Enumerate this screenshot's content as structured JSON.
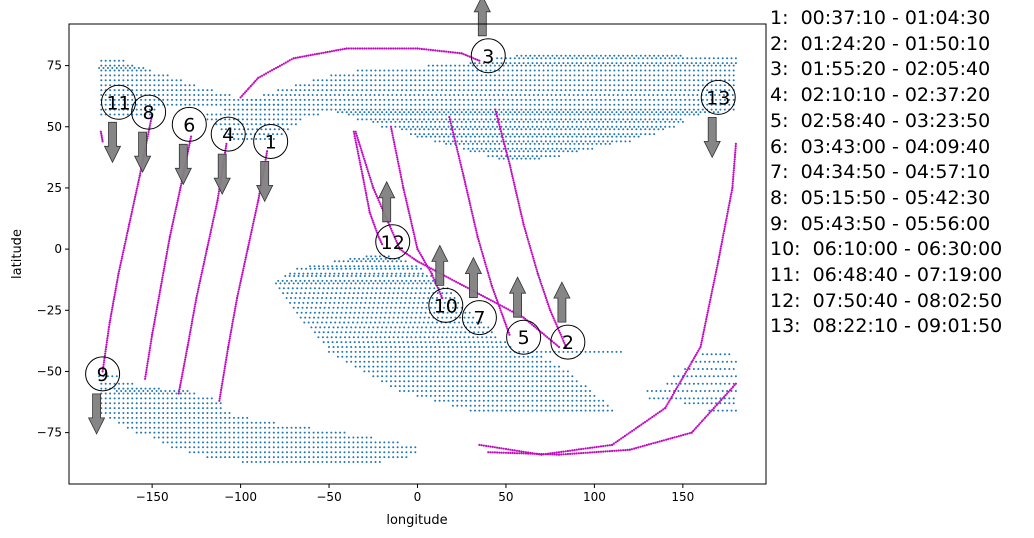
{
  "chart_data": {
    "type": "scatter",
    "title": "",
    "xlabel": "longitude",
    "ylabel": "latitude",
    "xlim": [
      -197,
      197
    ],
    "ylim": [
      -96,
      92
    ],
    "xticks": [
      -150,
      -100,
      -50,
      0,
      50,
      100,
      150
    ],
    "yticks": [
      -75,
      -50,
      -25,
      0,
      25,
      50,
      75
    ],
    "grid": false,
    "series": [
      {
        "color": "#1f77b4",
        "kind": "gridded-points",
        "lat_spacing": 1.5,
        "lon_spacing": 2.5,
        "bands": [
          [
            77,
            -180,
            -165
          ],
          [
            75,
            -180,
            -160
          ],
          [
            74,
            -180,
            -155
          ],
          [
            73,
            -180,
            -150
          ],
          [
            71,
            -180,
            -140
          ],
          [
            69,
            -180,
            -132
          ],
          [
            67,
            -180,
            -125
          ],
          [
            65,
            -180,
            -115
          ],
          [
            63,
            -180,
            -105
          ],
          [
            61,
            -180,
            -90
          ],
          [
            59,
            -180,
            -75
          ],
          [
            57,
            -180,
            -148
          ],
          [
            57,
            -110,
            -50
          ],
          [
            55,
            -180,
            -150
          ],
          [
            55,
            -120,
            -55
          ],
          [
            53,
            -120,
            -65
          ],
          [
            51,
            -115,
            -68
          ],
          [
            49,
            -112,
            -72
          ],
          [
            47,
            -108,
            -75
          ],
          [
            45,
            -105,
            -80
          ],
          [
            79,
            55,
            150
          ],
          [
            78,
            45,
            180
          ],
          [
            76,
            30,
            180
          ],
          [
            75,
            5,
            180
          ],
          [
            73,
            -35,
            180
          ],
          [
            71,
            -50,
            180
          ],
          [
            69,
            -60,
            180
          ],
          [
            67,
            -70,
            180
          ],
          [
            65,
            -80,
            180
          ],
          [
            63,
            -88,
            180
          ],
          [
            61,
            -95,
            180
          ],
          [
            59,
            -100,
            180
          ],
          [
            57,
            -50,
            180
          ],
          [
            56,
            -45,
            170
          ],
          [
            55,
            -40,
            160
          ],
          [
            53,
            -35,
            150
          ],
          [
            52,
            -25,
            150
          ],
          [
            50,
            -20,
            145
          ],
          [
            49,
            -10,
            140
          ],
          [
            47,
            -5,
            135
          ],
          [
            46,
            0,
            125
          ],
          [
            44,
            10,
            120
          ],
          [
            43,
            15,
            110
          ],
          [
            41,
            25,
            100
          ],
          [
            40,
            30,
            90
          ],
          [
            38,
            40,
            80
          ],
          [
            37,
            45,
            70
          ],
          [
            -3,
            -30,
            -15
          ],
          [
            -4,
            -38,
            -10
          ],
          [
            -5,
            -48,
            -5
          ],
          [
            -7,
            -62,
            0
          ],
          [
            -8,
            -68,
            2
          ],
          [
            -10,
            -72,
            5
          ],
          [
            -11,
            -76,
            8
          ],
          [
            -13,
            -80,
            12
          ],
          [
            -14,
            -80,
            14
          ],
          [
            -16,
            -78,
            17
          ],
          [
            -18,
            -76,
            19
          ],
          [
            -20,
            -74,
            22
          ],
          [
            -22,
            -72,
            24
          ],
          [
            -24,
            -70,
            27
          ],
          [
            -26,
            -68,
            30
          ],
          [
            -28,
            -66,
            33
          ],
          [
            -30,
            -64,
            36
          ],
          [
            -32,
            -60,
            40
          ],
          [
            -34,
            -58,
            43
          ],
          [
            -36,
            -56,
            46
          ],
          [
            -38,
            -53,
            50
          ],
          [
            -40,
            -50,
            53
          ],
          [
            -42,
            -50,
            115
          ],
          [
            -44,
            -45,
            70
          ],
          [
            -46,
            -40,
            75
          ],
          [
            -48,
            -35,
            80
          ],
          [
            -50,
            -30,
            85
          ],
          [
            -52,
            -25,
            88
          ],
          [
            -54,
            -20,
            92
          ],
          [
            -56,
            -15,
            95
          ],
          [
            -58,
            -10,
            98
          ],
          [
            -60,
            0,
            100
          ],
          [
            -62,
            10,
            105
          ],
          [
            -64,
            20,
            108
          ],
          [
            -66,
            30,
            110
          ],
          [
            -52,
            -180,
            -170
          ],
          [
            -55,
            -180,
            -160
          ],
          [
            -57,
            -180,
            -145
          ],
          [
            -59,
            -180,
            -125
          ],
          [
            -61,
            -180,
            -115
          ],
          [
            -63,
            -180,
            -110
          ],
          [
            -65,
            -180,
            -110
          ],
          [
            -67,
            -180,
            -105
          ],
          [
            -69,
            -175,
            -95
          ],
          [
            -71,
            -170,
            -80
          ],
          [
            -73,
            -165,
            -60
          ],
          [
            -75,
            -160,
            -40
          ],
          [
            -77,
            -150,
            -25
          ],
          [
            -79,
            -145,
            -10
          ],
          [
            -81,
            -140,
            0
          ],
          [
            -83,
            -130,
            0
          ],
          [
            -85,
            -120,
            -5
          ],
          [
            -87,
            -100,
            -20
          ],
          [
            -43,
            160,
            178
          ],
          [
            -46,
            155,
            180
          ],
          [
            -49,
            150,
            180
          ],
          [
            -52,
            145,
            180
          ],
          [
            -55,
            140,
            180
          ],
          [
            -58,
            130,
            180
          ],
          [
            -61,
            130,
            180
          ],
          [
            -63,
            150,
            180
          ],
          [
            -66,
            165,
            180
          ],
          [
            -58,
            -170,
            -130
          ]
        ]
      },
      {
        "color": "#c00bc0",
        "kind": "orbit-tracks",
        "tracks": [
          {
            "id": "1",
            "points": [
              [
                -85,
                40
              ],
              [
                -90,
                20
              ],
              [
                -96,
                0
              ],
              [
                -102,
                -20
              ],
              [
                -107,
                -40
              ],
              [
                -112,
                -62
              ]
            ]
          },
          {
            "id": "2",
            "points": [
              [
                -35,
                48
              ],
              [
                -25,
                25
              ],
              [
                -10,
                0
              ],
              [
                0,
                -5
              ],
              [
                60,
                -28
              ],
              [
                80,
                -40
              ]
            ]
          },
          {
            "id": "3",
            "points": [
              [
                -100,
                62
              ],
              [
                -90,
                70
              ],
              [
                -70,
                78
              ],
              [
                -40,
                82
              ],
              [
                0,
                82
              ],
              [
                25,
                80
              ],
              [
                35,
                77
              ]
            ]
          },
          {
            "id": "4",
            "points": [
              [
                -108,
                43
              ],
              [
                -113,
                20
              ],
              [
                -119,
                0
              ],
              [
                -125,
                -20
              ],
              [
                -130,
                -40
              ],
              [
                -135,
                -59
              ]
            ]
          },
          {
            "id": "5",
            "points": [
              [
                44,
                57
              ],
              [
                52,
                35
              ],
              [
                60,
                10
              ],
              [
                68,
                -10
              ],
              [
                75,
                -25
              ],
              [
                84,
                -40
              ]
            ]
          },
          {
            "id": "6",
            "points": [
              [
                -128,
                46
              ],
              [
                -134,
                25
              ],
              [
                -140,
                5
              ],
              [
                -145,
                -15
              ],
              [
                -150,
                -35
              ],
              [
                -154,
                -53
              ]
            ]
          },
          {
            "id": "7",
            "points": [
              [
                18,
                54
              ],
              [
                26,
                30
              ],
              [
                34,
                5
              ],
              [
                42,
                -15
              ],
              [
                52,
                -35
              ]
            ]
          },
          {
            "id": "8",
            "points": [
              [
                -150,
                55
              ],
              [
                -157,
                30
              ],
              [
                -163,
                10
              ],
              [
                -169,
                -10
              ],
              [
                -174,
                -30
              ],
              [
                -178,
                -50
              ]
            ]
          },
          {
            "id": "9",
            "points": [
              [
                -178,
                44
              ],
              [
                -179,
                48
              ]
            ]
          },
          {
            "id": "10",
            "points": [
              [
                -15,
                50
              ],
              [
                -8,
                25
              ],
              [
                0,
                0
              ],
              [
                8,
                -10
              ],
              [
                14,
                -20
              ]
            ]
          },
          {
            "id": "11",
            "points": [
              [
                35,
                -80
              ],
              [
                70,
                -84
              ],
              [
                110,
                -80
              ],
              [
                140,
                -65
              ],
              [
                160,
                -40
              ],
              [
                170,
                -5
              ],
              [
                178,
                25
              ],
              [
                180,
                43
              ]
            ]
          },
          {
            "id": "12",
            "points": [
              [
                -36,
                48
              ],
              [
                -31,
                30
              ],
              [
                -27,
                15
              ],
              [
                -22,
                5
              ],
              [
                -20,
                2
              ]
            ]
          },
          {
            "id": "13",
            "points": [
              [
                40,
                -83
              ],
              [
                80,
                -84
              ],
              [
                120,
                -82
              ],
              [
                155,
                -75
              ],
              [
                180,
                -55
              ]
            ]
          }
        ]
      }
    ],
    "annotations": [
      {
        "label": "1",
        "x": -83,
        "y": 44,
        "arrow": "down"
      },
      {
        "label": "2",
        "x": 85,
        "y": -38,
        "arrow": "up"
      },
      {
        "label": "3",
        "x": 40,
        "y": 79,
        "arrow": "up"
      },
      {
        "label": "4",
        "x": -107,
        "y": 47,
        "arrow": "down"
      },
      {
        "label": "5",
        "x": 60,
        "y": -36,
        "arrow": "up"
      },
      {
        "label": "6",
        "x": -129,
        "y": 51,
        "arrow": "down"
      },
      {
        "label": "7",
        "x": 35,
        "y": -28,
        "arrow": "up"
      },
      {
        "label": "8",
        "x": -152,
        "y": 56,
        "arrow": "down"
      },
      {
        "label": "9",
        "x": -178,
        "y": -51,
        "arrow": "down"
      },
      {
        "label": "10",
        "x": 16,
        "y": -23,
        "arrow": "up"
      },
      {
        "label": "11",
        "x": -169,
        "y": 60,
        "arrow": "down"
      },
      {
        "label": "12",
        "x": -14,
        "y": 3,
        "arrow": "up"
      },
      {
        "label": "13",
        "x": 170,
        "y": 62,
        "arrow": "down"
      }
    ],
    "legend_entries": [
      "1:  00:37:10 - 01:04:30",
      "2:  01:24:20 - 01:50:10",
      "3:  01:55:20 - 02:05:40",
      "4:  02:10:10 - 02:37:20",
      "5:  02:58:40 - 03:23:50",
      "6:  03:43:00 - 04:09:40",
      "7:  04:34:50 - 04:57:10",
      "8:  05:15:50 - 05:42:30",
      "9:  05:43:50 - 05:56:00",
      "10:  06:10:00 - 06:30:00",
      "11:  06:48:40 - 07:19:00",
      "12:  07:50:40 - 08:02:50",
      "13:  08:22:10 - 09:01:50"
    ],
    "legend_placement": "right, outside plot"
  }
}
